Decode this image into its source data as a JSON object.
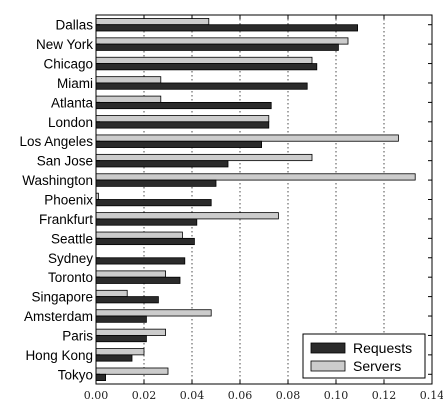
{
  "chart_data": {
    "type": "bar",
    "orientation": "horizontal",
    "title": "",
    "xlabel": "",
    "ylabel": "",
    "categories": [
      "Dallas",
      "New York",
      "Chicago",
      "Miami",
      "Atlanta",
      "London",
      "Los Angeles",
      "San Jose",
      "Washington",
      "Phoenix",
      "Frankfurt",
      "Seattle",
      "Sydney",
      "Toronto",
      "Singapore",
      "Amsterdam",
      "Paris",
      "Hong Kong",
      "Tokyo"
    ],
    "series": [
      {
        "name": "Requests",
        "color": "#2b2b2b",
        "values": [
          0.109,
          0.101,
          0.092,
          0.088,
          0.073,
          0.072,
          0.069,
          0.055,
          0.05,
          0.048,
          0.042,
          0.041,
          0.037,
          0.035,
          0.026,
          0.021,
          0.021,
          0.015,
          0.004
        ]
      },
      {
        "name": "Servers",
        "color": "#cccccc",
        "values": [
          0.047,
          0.105,
          0.09,
          0.027,
          0.027,
          0.072,
          0.126,
          0.09,
          0.133,
          0.001,
          0.076,
          0.036,
          0.0,
          0.029,
          0.013,
          0.048,
          0.029,
          0.02,
          0.03
        ]
      }
    ],
    "xlim": [
      0,
      0.14
    ],
    "xticks": [
      "0.00",
      "0.02",
      "0.04",
      "0.06",
      "0.08",
      "0.10",
      "0.12",
      "0.14"
    ],
    "grid": true,
    "legend_position": "bottom-right"
  }
}
